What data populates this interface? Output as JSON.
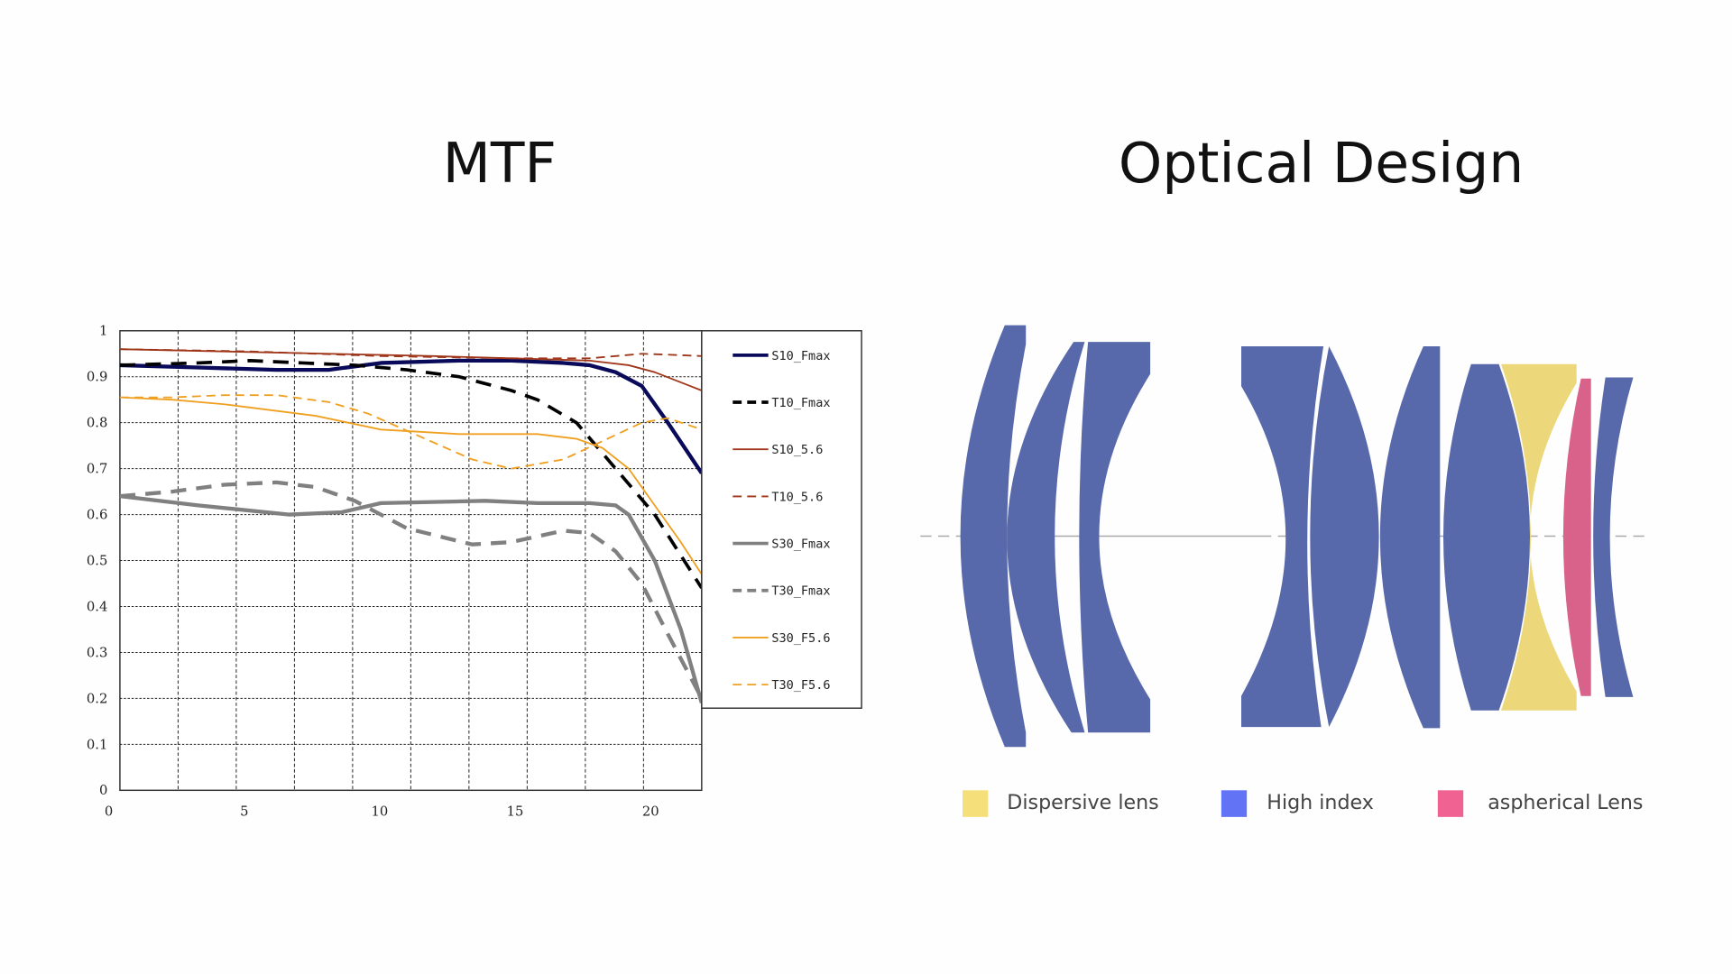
{
  "titles": {
    "mtf": "MTF",
    "optical": "Optical Design"
  },
  "chart_data": {
    "type": "line",
    "xlim": [
      0,
      22.3
    ],
    "ylim": [
      0,
      1
    ],
    "xticks": [
      0,
      5,
      10,
      15,
      20
    ],
    "yticks": [
      0,
      0.1,
      0.2,
      0.3,
      0.4,
      0.5,
      0.6,
      0.7,
      0.8,
      0.9,
      1
    ],
    "ytick_labels": [
      "0",
      "0.1",
      "0.2",
      "0.3",
      "0.4",
      "0.5",
      "0.6",
      "0.7",
      "0.8",
      "0.9",
      "1"
    ],
    "xtick_labels": [
      "0",
      "5",
      "10",
      "15",
      "20"
    ],
    "grid": true,
    "legend_position": "right",
    "series": [
      {
        "name": "S10_Fmax",
        "color": "#0a0a5a",
        "dash": false,
        "width": 3.5,
        "x": [
          0,
          3,
          6,
          8,
          10,
          13,
          15,
          17,
          18,
          19,
          20,
          21,
          22.3
        ],
        "y": [
          0.925,
          0.92,
          0.915,
          0.915,
          0.93,
          0.935,
          0.935,
          0.93,
          0.925,
          0.91,
          0.88,
          0.8,
          0.69
        ]
      },
      {
        "name": "T10_Fmax",
        "color": "#000000",
        "dash": true,
        "width": 3,
        "x": [
          0,
          3,
          5,
          7,
          9,
          11,
          13,
          15,
          16,
          17.5,
          19,
          20.5,
          22.3
        ],
        "y": [
          0.925,
          0.93,
          0.935,
          0.93,
          0.925,
          0.915,
          0.9,
          0.87,
          0.85,
          0.8,
          0.7,
          0.6,
          0.44
        ]
      },
      {
        "name": "S10_5.6",
        "color": "#a0361a",
        "dash": false,
        "width": 1.5,
        "x": [
          0,
          4,
          8,
          12,
          15,
          18,
          19.5,
          20.5,
          22.3
        ],
        "y": [
          0.96,
          0.955,
          0.95,
          0.945,
          0.94,
          0.935,
          0.925,
          0.91,
          0.87
        ]
      },
      {
        "name": "T10_5.6",
        "color": "#a0361a",
        "dash": true,
        "width": 1.5,
        "x": [
          0,
          5,
          10,
          15,
          18,
          19,
          20,
          21,
          22.3
        ],
        "y": [
          0.96,
          0.955,
          0.945,
          0.94,
          0.94,
          0.945,
          0.95,
          0.948,
          0.945
        ]
      },
      {
        "name": "S30_Fmax",
        "color": "#808080",
        "dash": false,
        "width": 3.5,
        "x": [
          0,
          3,
          6.5,
          8.5,
          10,
          14,
          16,
          18,
          19,
          19.5,
          20.5,
          21.5,
          22.3
        ],
        "y": [
          0.64,
          0.62,
          0.6,
          0.605,
          0.625,
          0.63,
          0.625,
          0.625,
          0.62,
          0.6,
          0.5,
          0.35,
          0.19
        ]
      },
      {
        "name": "T30_Fmax",
        "color": "#808080",
        "dash": true,
        "width": 3.5,
        "x": [
          0,
          2,
          4,
          6,
          7.5,
          9,
          11,
          13.5,
          15,
          17,
          18,
          19,
          20,
          21,
          22.3
        ],
        "y": [
          0.64,
          0.65,
          0.665,
          0.67,
          0.66,
          0.63,
          0.57,
          0.535,
          0.54,
          0.565,
          0.56,
          0.52,
          0.45,
          0.34,
          0.2
        ]
      },
      {
        "name": "S30_F5.6",
        "color": "#f0a020",
        "dash": false,
        "width": 1.5,
        "x": [
          0,
          2,
          4,
          7.5,
          10,
          13,
          16,
          17.5,
          18.5,
          19.5,
          20.5,
          21.5,
          22.3
        ],
        "y": [
          0.855,
          0.85,
          0.84,
          0.815,
          0.785,
          0.775,
          0.775,
          0.765,
          0.745,
          0.7,
          0.62,
          0.54,
          0.47
        ]
      },
      {
        "name": "T30_F5.6",
        "color": "#f0a020",
        "dash": true,
        "width": 1.5,
        "x": [
          0,
          2,
          4,
          6,
          8,
          9.5,
          11.5,
          13.5,
          15,
          17,
          18.5,
          20,
          21,
          22.3
        ],
        "y": [
          0.855,
          0.855,
          0.86,
          0.86,
          0.845,
          0.82,
          0.77,
          0.72,
          0.7,
          0.72,
          0.76,
          0.8,
          0.81,
          0.785
        ]
      }
    ]
  },
  "lens_legend": [
    {
      "label": "Dispersive lens",
      "color": "#f5df7a"
    },
    {
      "label": "High index",
      "color": "#6373f5"
    },
    {
      "label": "aspherical Lens",
      "color": "#f06292"
    }
  ],
  "lens_colors": {
    "high_index": "#5869ab",
    "dispersive": "#ecd87a",
    "aspherical": "#d9628a"
  }
}
